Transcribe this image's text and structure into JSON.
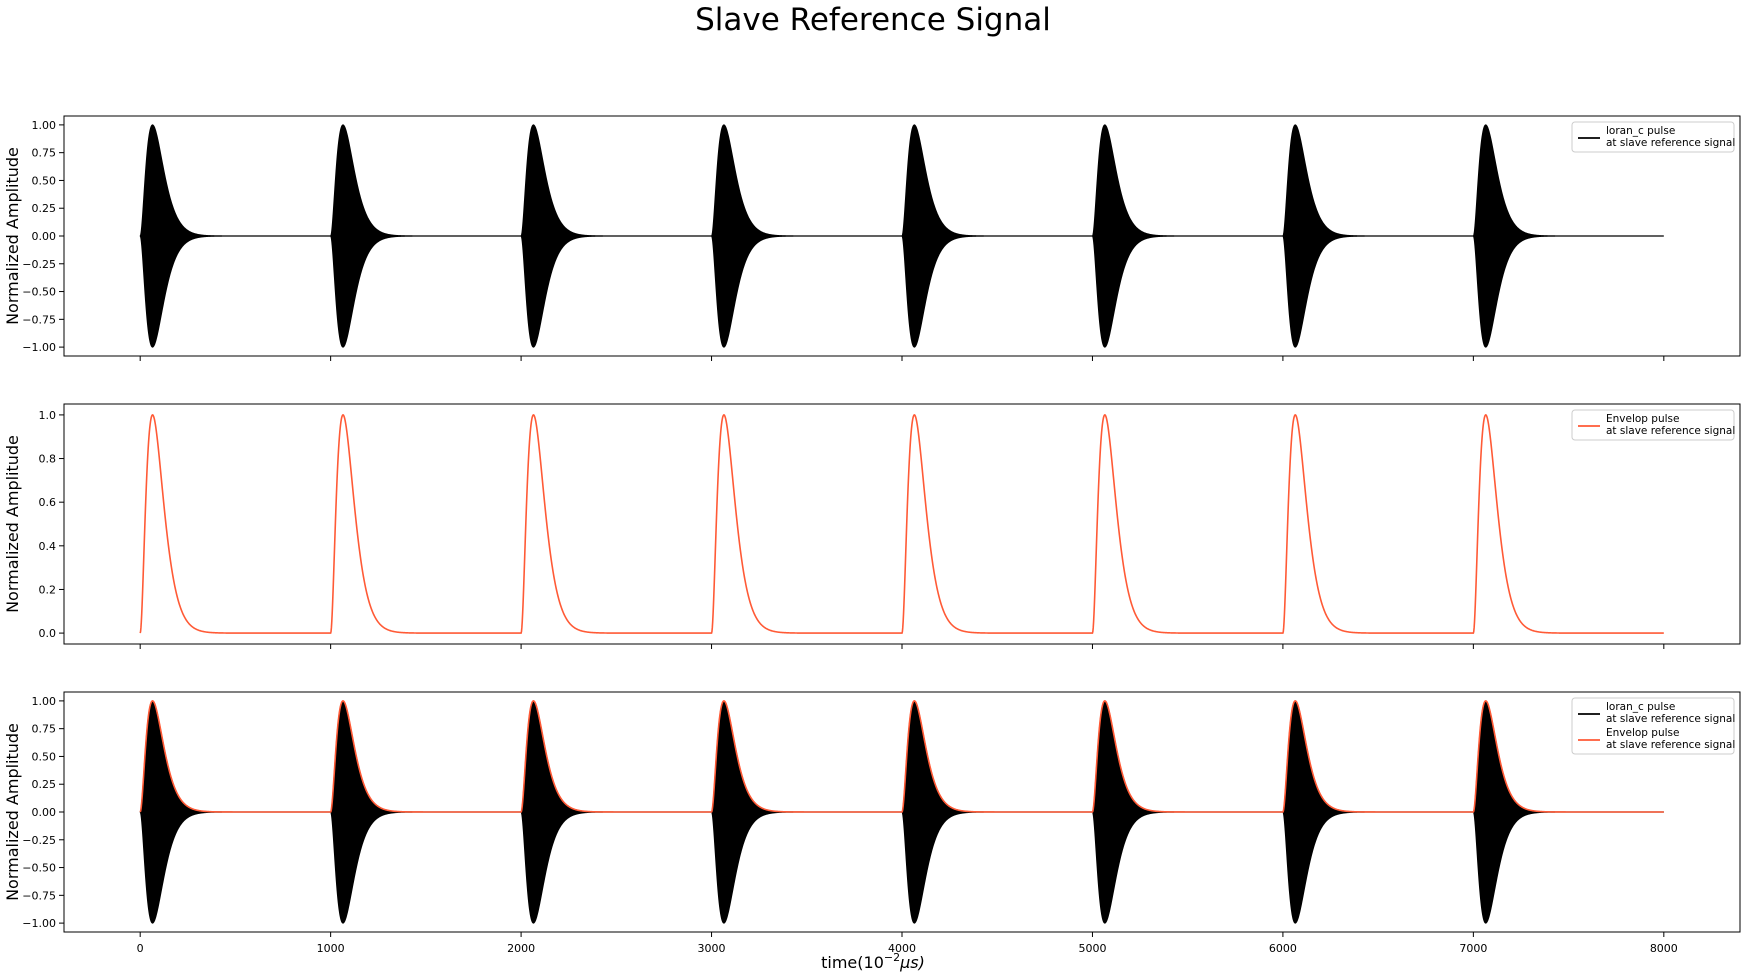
{
  "figure": {
    "title": "Slave Reference Signal",
    "xlabel": "time(10",
    "xlabel_exp": "−2",
    "xlabel_unit": "μs)"
  },
  "chart_data": [
    {
      "type": "line",
      "ylabel": "Normalized Amplitude",
      "xlim": [
        -400,
        8400
      ],
      "ylim": [
        -1.08,
        1.08
      ],
      "xticks": [
        0,
        1000,
        2000,
        3000,
        4000,
        5000,
        6000,
        7000,
        8000
      ],
      "xtick_labels_shown": false,
      "yticks": [
        -1.0,
        -0.75,
        -0.5,
        -0.25,
        0.0,
        0.25,
        0.5,
        0.75,
        1.0
      ],
      "ytick_labels": [
        "−1.00",
        "−0.75",
        "−0.50",
        "−0.25",
        "0.00",
        "0.25",
        "0.50",
        "0.75",
        "1.00"
      ],
      "pulse_starts": [
        0,
        1000,
        2000,
        3000,
        4000,
        5000,
        6000,
        7000
      ],
      "pulse_peak_offset": 65,
      "envelope_peak": 1.0,
      "x_end": 8000,
      "legend_position": "upper right",
      "series": [
        {
          "name_line1": "loran_c pulse",
          "name_line2": "at slave reference signal",
          "color": "#000000",
          "kind": "carrier"
        }
      ]
    },
    {
      "type": "line",
      "ylabel": "Normalized Amplitude",
      "xlim": [
        -400,
        8400
      ],
      "ylim": [
        -0.05,
        1.05
      ],
      "xticks": [
        0,
        1000,
        2000,
        3000,
        4000,
        5000,
        6000,
        7000,
        8000
      ],
      "xtick_labels_shown": false,
      "yticks": [
        0.0,
        0.2,
        0.4,
        0.6,
        0.8,
        1.0
      ],
      "ytick_labels": [
        "0.0",
        "0.2",
        "0.4",
        "0.6",
        "0.8",
        "1.0"
      ],
      "pulse_starts": [
        0,
        1000,
        2000,
        3000,
        4000,
        5000,
        6000,
        7000
      ],
      "pulse_peak_offset": 65,
      "envelope_peak": 1.0,
      "x_end": 8000,
      "legend_position": "upper right",
      "series": [
        {
          "name_line1": "Envelop pulse",
          "name_line2": "at slave reference signal",
          "color": "#ff5a36",
          "kind": "envelope"
        }
      ]
    },
    {
      "type": "line",
      "ylabel": "Normalized Amplitude",
      "xlim": [
        -400,
        8400
      ],
      "ylim": [
        -1.08,
        1.08
      ],
      "xticks": [
        0,
        1000,
        2000,
        3000,
        4000,
        5000,
        6000,
        7000,
        8000
      ],
      "xtick_labels_shown": true,
      "xtick_labels": [
        "0",
        "1000",
        "2000",
        "3000",
        "4000",
        "5000",
        "6000",
        "7000",
        "8000"
      ],
      "yticks": [
        -1.0,
        -0.75,
        -0.5,
        -0.25,
        0.0,
        0.25,
        0.5,
        0.75,
        1.0
      ],
      "ytick_labels": [
        "−1.00",
        "−0.75",
        "−0.50",
        "−0.25",
        "0.00",
        "0.25",
        "0.50",
        "0.75",
        "1.00"
      ],
      "pulse_starts": [
        0,
        1000,
        2000,
        3000,
        4000,
        5000,
        6000,
        7000
      ],
      "pulse_peak_offset": 65,
      "envelope_peak": 1.0,
      "x_end": 8000,
      "legend_position": "upper right",
      "series": [
        {
          "name_line1": "loran_c pulse",
          "name_line2": "at slave reference signal",
          "color": "#000000",
          "kind": "carrier"
        },
        {
          "name_line1": "Envelop pulse",
          "name_line2": "at slave reference signal",
          "color": "#ff5a36",
          "kind": "envelope"
        }
      ]
    }
  ]
}
